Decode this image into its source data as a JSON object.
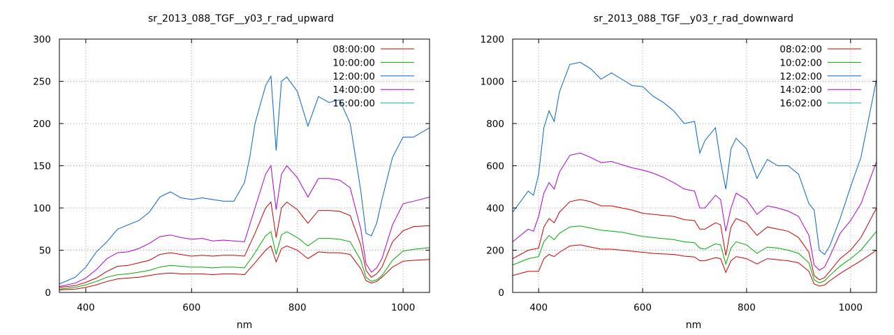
{
  "chart_data": [
    {
      "type": "line",
      "title": "sr_2013_088_TGF__y03_r_rad_upward",
      "xlabel": "nm",
      "ylabel": "",
      "xlim": [
        350,
        1050
      ],
      "ylim": [
        0,
        300
      ],
      "xticks": [
        400,
        600,
        800,
        1000
      ],
      "yticks": [
        0,
        50,
        100,
        150,
        200,
        250,
        300
      ],
      "grid": true,
      "legend_position": "top-right",
      "series": [
        {
          "name": "08:00:00",
          "color": "#cc0000",
          "x": [
            350,
            380,
            400,
            420,
            440,
            460,
            480,
            500,
            520,
            540,
            560,
            580,
            600,
            620,
            640,
            660,
            680,
            700,
            720,
            740,
            750,
            760,
            770,
            780,
            800,
            820,
            840,
            860,
            880,
            900,
            920,
            930,
            940,
            950,
            960,
            980,
            1000,
            1020,
            1050
          ],
          "y": [
            6,
            8,
            12,
            17,
            25,
            31,
            32,
            35,
            38,
            45,
            47,
            45,
            43,
            44,
            43,
            44,
            44,
            43,
            70,
            100,
            107,
            65,
            100,
            107,
            98,
            82,
            97,
            97,
            96,
            91,
            56,
            26,
            18,
            22,
            30,
            60,
            73,
            78,
            79
          ]
        },
        {
          "name": "10:00:00",
          "color": "#00aa00",
          "x": [
            350,
            380,
            400,
            420,
            440,
            460,
            480,
            500,
            520,
            540,
            560,
            580,
            600,
            620,
            640,
            660,
            680,
            700,
            720,
            740,
            750,
            760,
            770,
            780,
            800,
            820,
            840,
            860,
            880,
            900,
            920,
            930,
            940,
            950,
            960,
            980,
            1000,
            1020,
            1050
          ],
          "y": [
            4,
            6,
            9,
            13,
            18,
            21,
            22,
            24,
            26,
            30,
            32,
            31,
            30,
            30,
            29,
            30,
            30,
            29,
            47,
            67,
            72,
            45,
            68,
            72,
            65,
            55,
            64,
            64,
            63,
            60,
            38,
            18,
            13,
            15,
            20,
            38,
            49,
            51,
            53
          ]
        },
        {
          "name": "12:00:00",
          "color": "#0066cc",
          "x": [
            350,
            380,
            400,
            420,
            440,
            460,
            480,
            500,
            520,
            540,
            560,
            580,
            600,
            620,
            640,
            660,
            680,
            700,
            710,
            720,
            740,
            750,
            760,
            770,
            780,
            800,
            820,
            840,
            860,
            880,
            900,
            920,
            930,
            940,
            950,
            960,
            980,
            1000,
            1020,
            1050
          ],
          "y": [
            10,
            18,
            30,
            48,
            60,
            75,
            80,
            85,
            95,
            113,
            119,
            112,
            110,
            112,
            110,
            108,
            108,
            130,
            160,
            200,
            245,
            256,
            168,
            250,
            255,
            238,
            197,
            232,
            225,
            228,
            200,
            120,
            70,
            67,
            82,
            110,
            160,
            184,
            184,
            195
          ]
        },
        {
          "name": "14:00:00",
          "color": "#aa00cc",
          "x": [
            350,
            380,
            400,
            420,
            440,
            460,
            480,
            500,
            520,
            540,
            560,
            580,
            600,
            620,
            640,
            660,
            680,
            700,
            720,
            740,
            750,
            760,
            770,
            780,
            800,
            820,
            840,
            860,
            880,
            900,
            920,
            930,
            940,
            950,
            960,
            980,
            1000,
            1020,
            1050
          ],
          "y": [
            7,
            11,
            17,
            27,
            40,
            47,
            48,
            52,
            58,
            66,
            68,
            65,
            63,
            64,
            61,
            62,
            61,
            60,
            100,
            140,
            150,
            98,
            140,
            150,
            136,
            113,
            135,
            135,
            133,
            124,
            75,
            34,
            24,
            29,
            40,
            80,
            105,
            108,
            113
          ]
        },
        {
          "name": "16:00:00",
          "color": "#00bbdd",
          "x": [],
          "y": []
        },
        {
          "name": "",
          "color": "#cc0000",
          "x": [
            350,
            380,
            400,
            420,
            440,
            460,
            480,
            500,
            520,
            540,
            560,
            580,
            600,
            620,
            640,
            660,
            680,
            700,
            720,
            740,
            750,
            760,
            770,
            780,
            800,
            820,
            840,
            860,
            880,
            900,
            920,
            930,
            940,
            950,
            960,
            980,
            1000,
            1020,
            1050
          ],
          "y": [
            3,
            4,
            6,
            9,
            13,
            16,
            17,
            18,
            20,
            22,
            23,
            22,
            22,
            22,
            21,
            22,
            22,
            21,
            35,
            50,
            55,
            36,
            52,
            55,
            50,
            40,
            48,
            47,
            47,
            45,
            28,
            14,
            11,
            13,
            18,
            30,
            37,
            38,
            39
          ]
        }
      ]
    },
    {
      "type": "line",
      "title": "sr_2013_088_TGF__y03_r_rad_downward",
      "xlabel": "nm",
      "ylabel": "",
      "xlim": [
        350,
        1050
      ],
      "ylim": [
        0,
        1200
      ],
      "xticks": [
        400,
        600,
        800,
        1000
      ],
      "yticks": [
        0,
        200,
        400,
        600,
        800,
        1000,
        1200
      ],
      "grid": true,
      "legend_position": "top-right",
      "series": [
        {
          "name": "08:02:00",
          "color": "#cc0000",
          "x": [
            350,
            380,
            400,
            410,
            420,
            430,
            440,
            460,
            480,
            500,
            520,
            540,
            560,
            580,
            600,
            620,
            640,
            660,
            680,
            700,
            710,
            720,
            740,
            750,
            760,
            770,
            780,
            800,
            820,
            840,
            860,
            880,
            900,
            920,
            930,
            940,
            950,
            960,
            980,
            1000,
            1020,
            1050
          ],
          "y": [
            160,
            200,
            210,
            310,
            350,
            330,
            380,
            430,
            440,
            430,
            410,
            410,
            400,
            390,
            375,
            370,
            365,
            360,
            345,
            340,
            300,
            300,
            330,
            320,
            175,
            310,
            350,
            330,
            270,
            310,
            300,
            290,
            260,
            190,
            80,
            60,
            70,
            100,
            160,
            200,
            260,
            400
          ]
        },
        {
          "name": "10:02:00",
          "color": "#00aa00",
          "x": [
            350,
            380,
            400,
            410,
            420,
            430,
            440,
            460,
            480,
            500,
            520,
            540,
            560,
            580,
            600,
            620,
            640,
            660,
            680,
            700,
            710,
            720,
            740,
            750,
            760,
            770,
            780,
            800,
            820,
            840,
            860,
            880,
            900,
            920,
            930,
            940,
            950,
            960,
            980,
            1000,
            1020,
            1050
          ],
          "y": [
            130,
            160,
            170,
            240,
            270,
            250,
            280,
            310,
            315,
            305,
            295,
            290,
            285,
            275,
            265,
            260,
            255,
            250,
            240,
            235,
            210,
            205,
            230,
            225,
            135,
            210,
            240,
            225,
            185,
            215,
            210,
            200,
            185,
            140,
            60,
            45,
            55,
            80,
            125,
            160,
            200,
            290
          ]
        },
        {
          "name": "12:02:00",
          "color": "#0066cc",
          "x": [
            350,
            380,
            390,
            400,
            410,
            420,
            430,
            440,
            460,
            480,
            500,
            520,
            540,
            560,
            580,
            600,
            620,
            640,
            660,
            680,
            700,
            710,
            720,
            740,
            750,
            760,
            770,
            780,
            800,
            820,
            840,
            860,
            880,
            900,
            920,
            930,
            940,
            950,
            960,
            980,
            1000,
            1020,
            1050
          ],
          "y": [
            380,
            480,
            460,
            560,
            780,
            860,
            810,
            950,
            1080,
            1090,
            1060,
            1010,
            1040,
            1010,
            980,
            975,
            930,
            900,
            860,
            800,
            810,
            660,
            720,
            780,
            620,
            490,
            680,
            730,
            680,
            540,
            630,
            600,
            600,
            560,
            420,
            390,
            200,
            180,
            220,
            350,
            500,
            640,
            1010
          ]
        },
        {
          "name": "14:02:00",
          "color": "#aa00cc",
          "x": [
            350,
            380,
            390,
            400,
            410,
            420,
            430,
            440,
            460,
            480,
            500,
            520,
            540,
            560,
            580,
            600,
            620,
            640,
            660,
            680,
            700,
            710,
            720,
            740,
            750,
            760,
            770,
            780,
            800,
            820,
            840,
            860,
            880,
            900,
            920,
            930,
            940,
            950,
            960,
            980,
            1000,
            1020,
            1050
          ],
          "y": [
            240,
            300,
            290,
            360,
            470,
            520,
            490,
            570,
            650,
            660,
            640,
            615,
            620,
            605,
            590,
            580,
            565,
            545,
            520,
            490,
            480,
            400,
            400,
            460,
            440,
            290,
            400,
            470,
            440,
            370,
            410,
            400,
            385,
            360,
            270,
            130,
            105,
            120,
            170,
            280,
            340,
            420,
            620
          ]
        },
        {
          "name": "16:02:00",
          "color": "#00bbdd",
          "x": [],
          "y": []
        },
        {
          "name": "",
          "color": "#cc0000",
          "x": [
            350,
            380,
            400,
            410,
            420,
            430,
            440,
            460,
            480,
            500,
            520,
            540,
            560,
            580,
            600,
            620,
            640,
            660,
            680,
            700,
            710,
            720,
            740,
            750,
            760,
            770,
            780,
            800,
            820,
            840,
            860,
            880,
            900,
            920,
            930,
            940,
            950,
            960,
            980,
            1000,
            1020,
            1050
          ],
          "y": [
            80,
            100,
            100,
            160,
            180,
            170,
            190,
            220,
            225,
            215,
            205,
            205,
            200,
            195,
            190,
            185,
            182,
            180,
            172,
            168,
            150,
            150,
            165,
            160,
            95,
            150,
            170,
            160,
            135,
            160,
            155,
            150,
            140,
            100,
            40,
            30,
            35,
            55,
            90,
            120,
            150,
            200
          ]
        }
      ]
    }
  ]
}
